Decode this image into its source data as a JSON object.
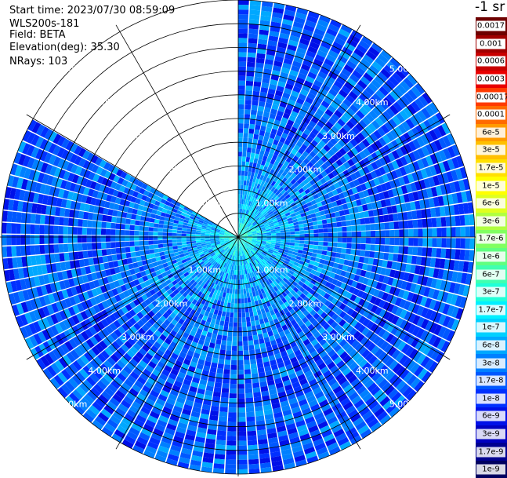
{
  "header": {
    "start_time": "Start time: 2023/07/30 08:59:09",
    "instrument": "WLS200s-181",
    "field": "Field: BETA",
    "elevation": "Elevation(deg): 35.30",
    "nrays": "NRays: 103"
  },
  "colorbar": {
    "unit_label": "-1 sr",
    "cells": [
      {
        "label": "0.0017",
        "color": "#6e0000",
        "boxed": true
      },
      {
        "label": "0.001",
        "color": "#a00000",
        "boxed": true
      },
      {
        "label": "0.0006",
        "color": "#c80000",
        "boxed": true
      },
      {
        "label": "0.0003",
        "color": "#e80000",
        "boxed": true
      },
      {
        "label": "0.00017",
        "color": "#ff3a00",
        "boxed": true
      },
      {
        "label": "0.0001",
        "color": "#ff6a00",
        "boxed": true
      },
      {
        "label": "6e-5",
        "color": "#ff9a00",
        "boxed": false
      },
      {
        "label": "3e-5",
        "color": "#ffc000",
        "boxed": false
      },
      {
        "label": "1.7e-5",
        "color": "#ffe000",
        "boxed": false
      },
      {
        "label": "1e-5",
        "color": "#ffff00",
        "boxed": false
      },
      {
        "label": "6e-6",
        "color": "#e0ff20",
        "boxed": false
      },
      {
        "label": "3e-6",
        "color": "#b0ff40",
        "boxed": false
      },
      {
        "label": "1.7e-6",
        "color": "#80ff60",
        "boxed": false
      },
      {
        "label": "1e-6",
        "color": "#60ff80",
        "boxed": false
      },
      {
        "label": "6e-7",
        "color": "#40ffb0",
        "boxed": false
      },
      {
        "label": "3e-7",
        "color": "#20ffd8",
        "boxed": false
      },
      {
        "label": "1.7e-7",
        "color": "#00f0ff",
        "boxed": false
      },
      {
        "label": "1e-7",
        "color": "#00d0ff",
        "boxed": false
      },
      {
        "label": "6e-8",
        "color": "#00a8ff",
        "boxed": false
      },
      {
        "label": "3e-8",
        "color": "#0080ff",
        "boxed": false
      },
      {
        "label": "1.7e-8",
        "color": "#0058ff",
        "boxed": false
      },
      {
        "label": "1e-8",
        "color": "#0030ff",
        "boxed": false
      },
      {
        "label": "6e-9",
        "color": "#0010e8",
        "boxed": false
      },
      {
        "label": "3e-9",
        "color": "#0000c0",
        "boxed": false
      },
      {
        "label": "1.7e-9",
        "color": "#000090",
        "boxed": false
      },
      {
        "label": "1e-9",
        "color": "#000060",
        "boxed": false
      }
    ]
  },
  "chart_data": {
    "type": "heatmap",
    "subtype": "polar-ppi",
    "field": "BETA",
    "units": "sr-1",
    "scale": "log",
    "color_range": [
      1e-09,
      0.0017
    ],
    "max_range_km": 5.0,
    "range_ring_labels": [
      "1.00km",
      "2.00km",
      "3.00km",
      "4.00km",
      "5.00km"
    ],
    "range_rings_km": [
      0.5,
      1.0,
      1.5,
      2.0,
      2.5,
      3.0,
      3.5,
      4.0,
      4.5,
      5.0
    ],
    "azimuth_lines_deg": [
      0,
      30,
      60,
      90,
      120,
      150,
      180,
      210,
      240,
      270,
      300,
      330
    ],
    "missing_sector_deg": [
      300,
      360
    ],
    "nrays": 103,
    "elevation_deg": 35.3,
    "start_time": "2023/07/30 08:59:09",
    "typical_value_by_range": [
      {
        "range_km": 0.1,
        "beta": 3e-07
      },
      {
        "range_km": 0.5,
        "beta": 1e-07
      },
      {
        "range_km": 1.0,
        "beta": 5e-08
      },
      {
        "range_km": 2.0,
        "beta": 3e-08
      },
      {
        "range_km": 3.0,
        "beta": 2e-08
      },
      {
        "range_km": 4.0,
        "beta": 2e-08
      },
      {
        "range_km": 5.0,
        "beta": 2e-08
      }
    ]
  }
}
